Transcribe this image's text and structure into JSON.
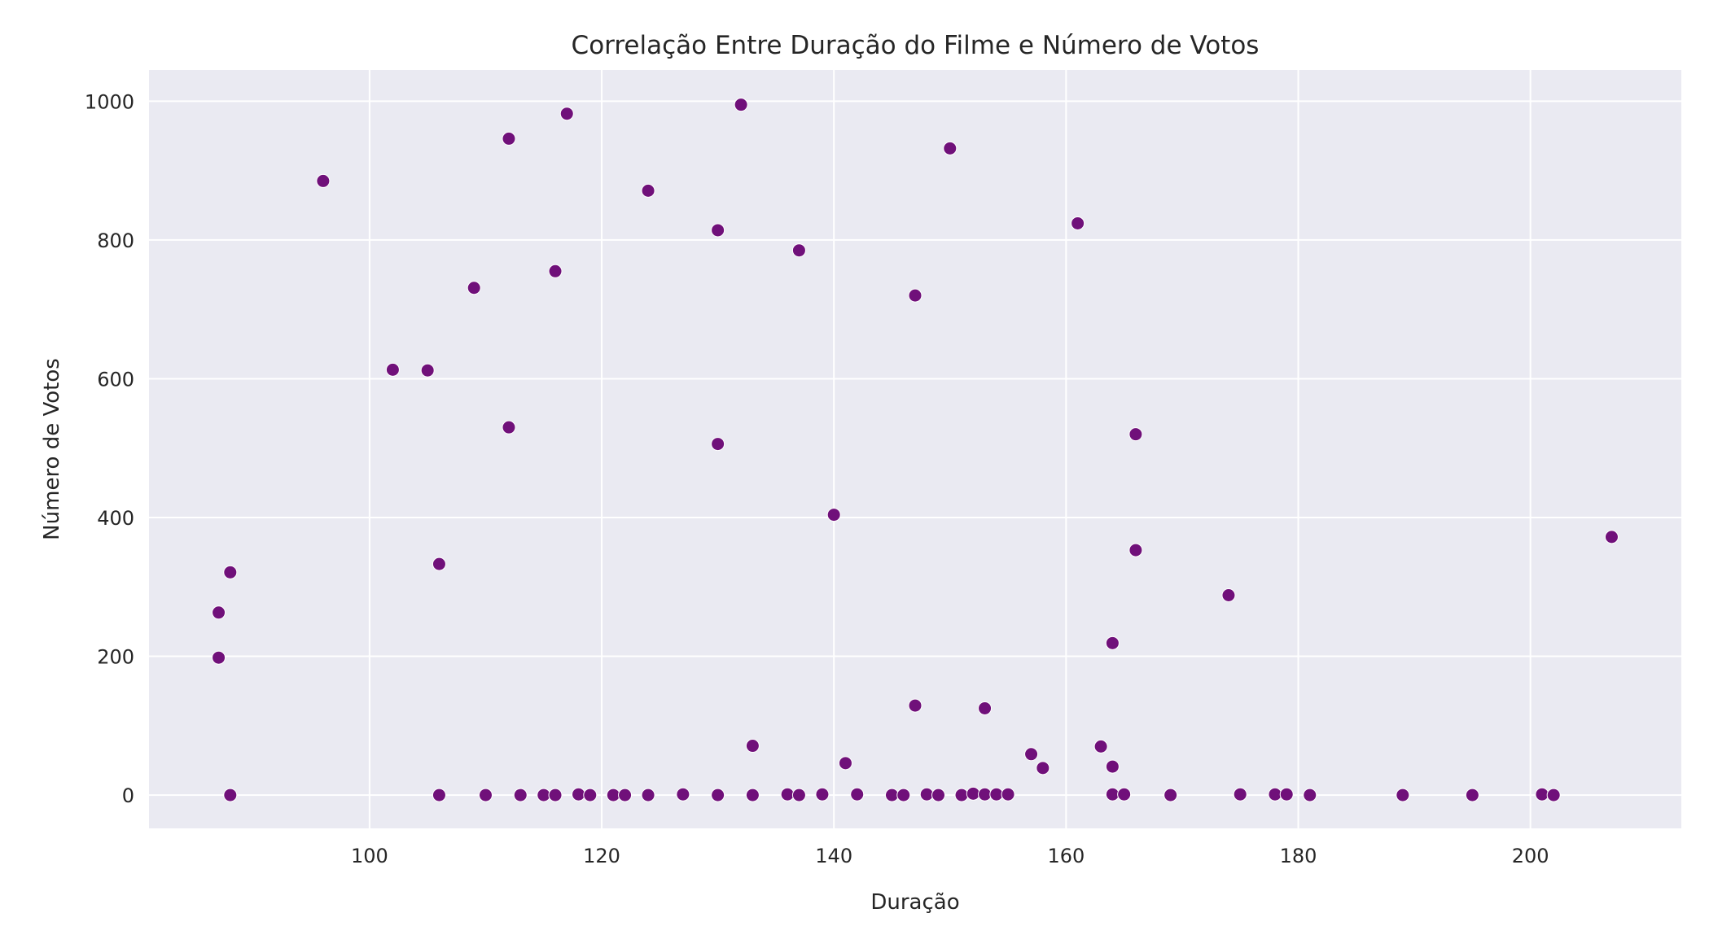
{
  "chart_data": {
    "type": "scatter",
    "title": "Correlação Entre Duração do Filme e Número de Votos",
    "xlabel": "Duração",
    "ylabel": "Número de Votos",
    "xlim": [
      81,
      213
    ],
    "ylim": [
      -48,
      1045
    ],
    "xticks": [
      100,
      120,
      140,
      160,
      180,
      200
    ],
    "yticks": [
      0,
      200,
      400,
      600,
      800,
      1000
    ],
    "grid": true,
    "background_color": "#eaeaf2",
    "grid_color": "#ffffff",
    "point_color": "#70107a",
    "point_edge_color": "#ffffff",
    "series": [
      {
        "x": [
          87,
          87,
          88,
          88,
          96,
          102,
          105,
          106,
          106,
          109,
          110,
          112,
          112,
          113,
          115,
          116,
          116,
          117,
          118,
          119,
          121,
          122,
          124,
          124,
          127,
          130,
          130,
          130,
          132,
          133,
          133,
          136,
          137,
          137,
          139,
          140,
          141,
          142,
          145,
          146,
          147,
          147,
          148,
          149,
          150,
          151,
          152,
          153,
          153,
          154,
          155,
          157,
          158,
          161,
          163,
          164,
          164,
          164,
          165,
          166,
          166,
          169,
          174,
          175,
          178,
          179,
          181,
          189,
          195,
          201,
          202,
          207
        ],
        "y": [
          263,
          198,
          321,
          0,
          885,
          613,
          612,
          333,
          0,
          731,
          0,
          946,
          530,
          0,
          0,
          755,
          0,
          982,
          1,
          0,
          0,
          0,
          871,
          0,
          1,
          814,
          506,
          0,
          995,
          71,
          0,
          1,
          785,
          0,
          1,
          404,
          46,
          1,
          0,
          0,
          720,
          129,
          1,
          0,
          932,
          0,
          2,
          125,
          1,
          1,
          1,
          59,
          39,
          824,
          70,
          219,
          41,
          1,
          1,
          520,
          353,
          0,
          288,
          1,
          1,
          1,
          0,
          0,
          0,
          1,
          0,
          372
        ]
      }
    ]
  }
}
